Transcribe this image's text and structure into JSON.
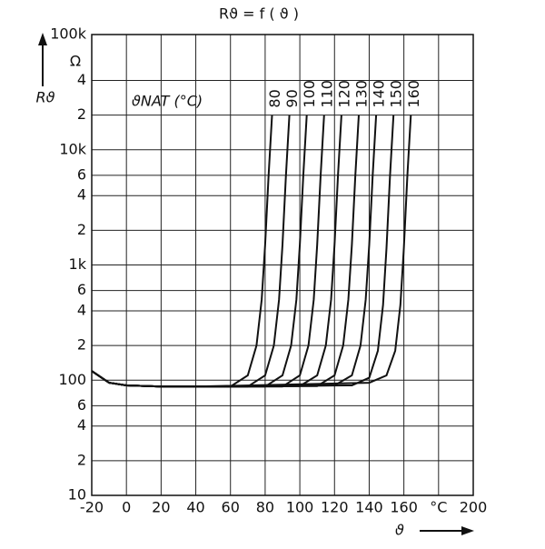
{
  "chart_data": {
    "type": "line",
    "title": "Rϑ = f ( ϑ )",
    "y_label": "Rϑ",
    "y_unit": "Ω",
    "x_label": "ϑ",
    "annotation": "ϑNAT (°C)",
    "log_y": true,
    "grid": true,
    "color": "#111111",
    "xlim": [
      -20,
      200
    ],
    "xticks": [
      -20,
      0,
      20,
      40,
      60,
      80,
      100,
      120,
      140,
      160,
      {
        "value": 180,
        "label": "°C"
      },
      200
    ],
    "ylim": [
      10,
      100000
    ],
    "yticks": [
      10,
      {
        "value": 20,
        "label": "2"
      },
      {
        "value": 40,
        "label": "4"
      },
      {
        "value": 60,
        "label": "6"
      },
      100,
      {
        "value": 200,
        "label": "2"
      },
      {
        "value": 400,
        "label": "4"
      },
      {
        "value": 600,
        "label": "6"
      },
      {
        "value": 1000,
        "label": "1k"
      },
      {
        "value": 2000,
        "label": "2"
      },
      {
        "value": 4000,
        "label": "4"
      },
      {
        "value": 6000,
        "label": "6"
      },
      {
        "value": 10000,
        "label": "10k"
      },
      {
        "value": 20000,
        "label": "2"
      },
      {
        "value": 40000,
        "label": "4"
      },
      {
        "value": 100000,
        "label": "100k"
      }
    ],
    "series": [
      {
        "name": "80",
        "x": [
          -20,
          -10,
          0,
          20,
          40,
          60,
          70,
          75,
          78,
          80,
          82,
          84
        ],
        "values": [
          120,
          95,
          90,
          88,
          88,
          88,
          110,
          200,
          500,
          1500,
          6000,
          20000
        ]
      },
      {
        "name": "90",
        "x": [
          -20,
          -10,
          0,
          20,
          40,
          70,
          80,
          85,
          88,
          90,
          92,
          94
        ],
        "values": [
          120,
          95,
          90,
          88,
          88,
          88,
          110,
          200,
          500,
          1500,
          6000,
          20000
        ]
      },
      {
        "name": "100",
        "x": [
          -20,
          -10,
          0,
          20,
          40,
          80,
          90,
          95,
          98,
          100,
          102,
          104
        ],
        "values": [
          120,
          95,
          90,
          88,
          88,
          88,
          110,
          200,
          500,
          1500,
          6000,
          20000
        ]
      },
      {
        "name": "110",
        "x": [
          -20,
          -10,
          0,
          20,
          40,
          90,
          100,
          105,
          108,
          110,
          112,
          114
        ],
        "values": [
          120,
          95,
          90,
          88,
          88,
          88,
          110,
          200,
          500,
          1500,
          6000,
          20000
        ]
      },
      {
        "name": "120",
        "x": [
          -20,
          -10,
          0,
          20,
          40,
          100,
          110,
          115,
          118,
          120,
          122,
          124
        ],
        "values": [
          120,
          95,
          90,
          88,
          88,
          89,
          110,
          200,
          500,
          1500,
          6000,
          20000
        ]
      },
      {
        "name": "130",
        "x": [
          -20,
          -10,
          0,
          20,
          40,
          110,
          120,
          125,
          128,
          130,
          132,
          134
        ],
        "values": [
          120,
          95,
          90,
          88,
          88,
          89,
          110,
          200,
          500,
          1500,
          6000,
          20000
        ]
      },
      {
        "name": "140",
        "x": [
          -20,
          -10,
          0,
          20,
          40,
          120,
          130,
          135,
          138,
          140,
          142,
          144
        ],
        "values": [
          120,
          95,
          90,
          88,
          88,
          90,
          110,
          200,
          500,
          1500,
          6000,
          20000
        ]
      },
      {
        "name": "150",
        "x": [
          -20,
          -10,
          0,
          20,
          40,
          130,
          140,
          145,
          148,
          150,
          152,
          154
        ],
        "values": [
          120,
          95,
          90,
          88,
          88,
          90,
          105,
          180,
          450,
          1400,
          6000,
          20000
        ]
      },
      {
        "name": "160",
        "x": [
          -20,
          -10,
          0,
          20,
          40,
          140,
          150,
          155,
          158,
          160,
          162,
          164
        ],
        "values": [
          120,
          95,
          90,
          88,
          88,
          95,
          110,
          180,
          450,
          1400,
          6000,
          20000
        ]
      }
    ]
  }
}
